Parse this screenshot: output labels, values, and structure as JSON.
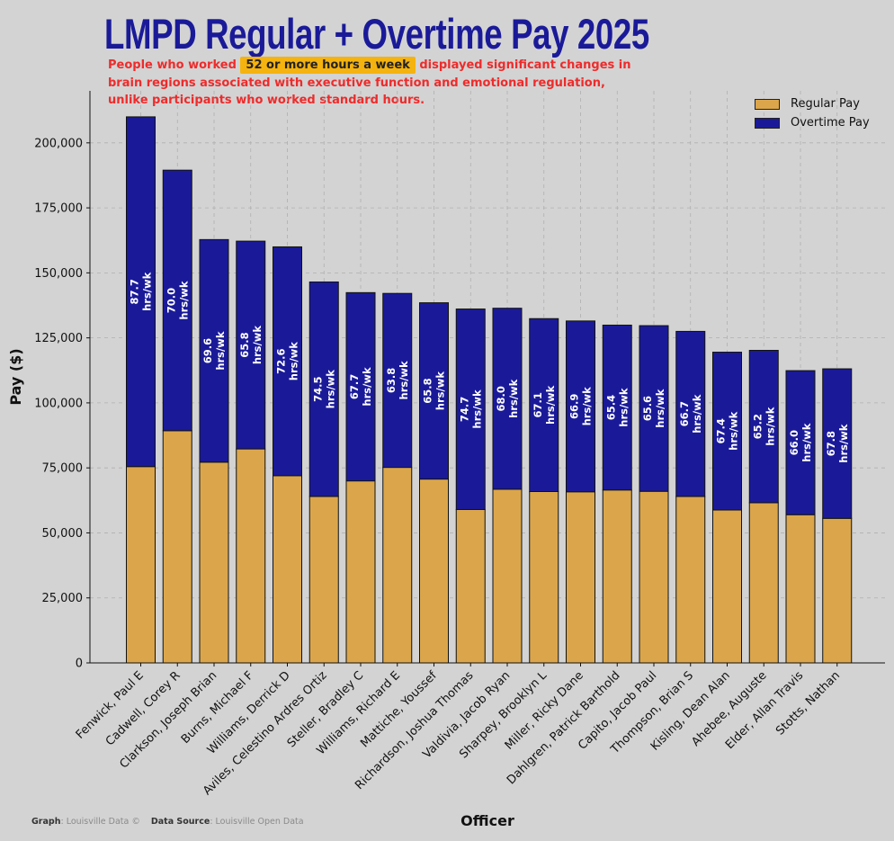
{
  "title": "LMPD Regular + Overtime Pay 2025",
  "subtitle": {
    "before": "People who worked ",
    "highlight": "52 or more hours a week",
    "after": " displayed significant changes in brain regions associated with executive function and emotional regulation, unlike participants who worked standard hours."
  },
  "footer": {
    "graph_label": "Graph",
    "graph_value": ": Louisville Data ©",
    "source_label": "Data Source",
    "source_value": ": Louisville Open Data"
  },
  "colors": {
    "regular": "#dba64b",
    "overtime": "#1a1a99",
    "subtitle": "#ee2b2b",
    "highlight": "#f5b30f",
    "background": "#d3d3d3"
  },
  "chart_data": {
    "type": "bar",
    "stacked": true,
    "xlabel": "Officer",
    "ylabel": "Pay ($)",
    "ylim": [
      0,
      220000
    ],
    "yticks": [
      0,
      25000,
      50000,
      75000,
      100000,
      125000,
      150000,
      175000,
      200000
    ],
    "ytick_labels": [
      "0",
      "25,000",
      "50,000",
      "75,000",
      "100,000",
      "125,000",
      "150,000",
      "175,000",
      "200,000"
    ],
    "grid": true,
    "legend_position": "top-right",
    "categories": [
      "Fenwick, Paul E",
      "Cadwell, Corey R",
      "Clarkson, Joseph Brian",
      "Burns, Michael F",
      "Williams, Derrick D",
      "Aviles, Celestino Ardres Ortiz",
      "Steller, Bradley C",
      "Williams, Richard E",
      "Mattiche, Youssef",
      "Richardson, Joshua Thomas",
      "Valdivia, Jacob Ryan",
      "Sharpey, Brooklyn L",
      "Miller, Ricky Dane",
      "Dahlgren, Patrick Barthold",
      "Capito, Jacob Paul",
      "Thompson, Brian S",
      "Kisling, Dean Alan",
      "Ahebee, Auguste",
      "Elder, Allan Travis",
      "Stotts, Nathan"
    ],
    "series": [
      {
        "name": "Regular Pay",
        "values": [
          75500,
          89300,
          77200,
          82300,
          72000,
          64000,
          70000,
          75200,
          70700,
          59000,
          66800,
          65900,
          65800,
          66500,
          66000,
          64000,
          58800,
          61600,
          57000,
          55600
        ]
      },
      {
        "name": "Overtime Pay",
        "values": [
          134500,
          100200,
          85600,
          79900,
          88000,
          82500,
          72400,
          66900,
          67800,
          77100,
          69600,
          66500,
          65700,
          63400,
          63700,
          63500,
          60700,
          58600,
          55400,
          57500
        ]
      }
    ],
    "hours_labels": [
      "87.7",
      "70.0",
      "69.6",
      "65.8",
      "72.6",
      "74.5",
      "67.7",
      "63.8",
      "65.8",
      "74.7",
      "68.0",
      "67.1",
      "66.9",
      "65.4",
      "65.6",
      "66.7",
      "67.4",
      "65.2",
      "66.0",
      "67.8"
    ],
    "hours_unit": "hrs/wk"
  }
}
